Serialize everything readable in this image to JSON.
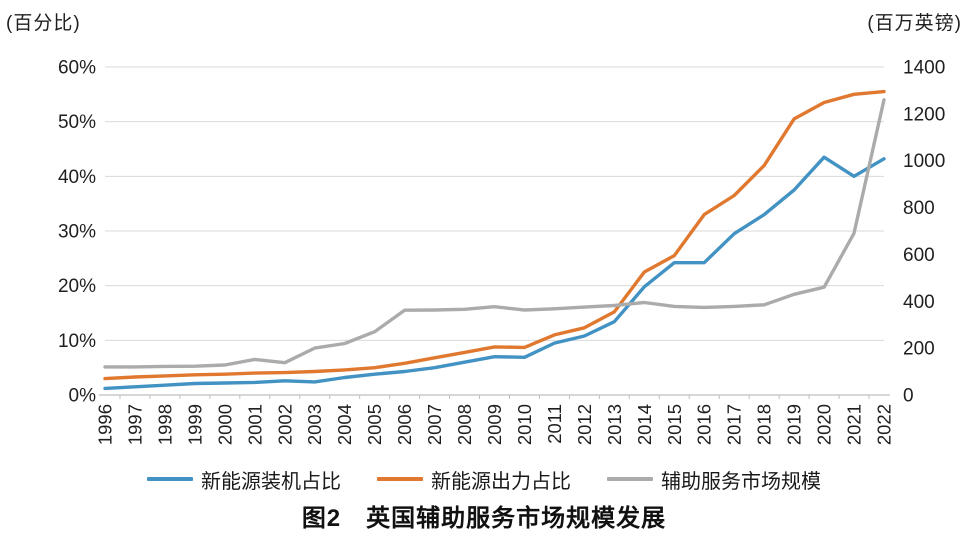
{
  "figure": {
    "left_axis_unit": "(百分比)",
    "right_axis_unit": "(百万英镑)",
    "caption": "图2　英国辅助服务市场规模发展"
  },
  "chart_data": {
    "type": "line",
    "title": "图2 英国辅助服务市场规模发展",
    "x": [
      1996,
      1997,
      1998,
      1999,
      2000,
      2001,
      2002,
      2003,
      2004,
      2005,
      2006,
      2007,
      2008,
      2009,
      2010,
      2011,
      2012,
      2013,
      2014,
      2015,
      2016,
      2017,
      2018,
      2019,
      2020,
      2021,
      2022
    ],
    "series": [
      {
        "name": "新能源装机占比",
        "axis": "left",
        "color": "#4292C3",
        "values": [
          1.2,
          1.5,
          1.8,
          2.1,
          2.2,
          2.3,
          2.6,
          2.4,
          3.2,
          3.8,
          4.3,
          5.0,
          6.0,
          7.0,
          6.9,
          9.5,
          10.8,
          13.4,
          19.8,
          24.2,
          24.2,
          29.5,
          33.0,
          37.5,
          43.5,
          40.0,
          43.2
        ]
      },
      {
        "name": "新能源出力占比",
        "axis": "left",
        "color": "#E0792F",
        "values": [
          3.0,
          3.3,
          3.5,
          3.7,
          3.8,
          4.0,
          4.1,
          4.3,
          4.6,
          5.0,
          5.8,
          6.8,
          7.8,
          8.8,
          8.7,
          11.0,
          12.3,
          15.2,
          22.5,
          25.5,
          33.0,
          36.5,
          42.0,
          50.5,
          53.5,
          55.0,
          55.5
        ]
      },
      {
        "name": "辅助服务市场规模",
        "axis": "right",
        "color": "#ABABAB",
        "values": [
          120,
          120,
          122,
          123,
          128,
          152,
          138,
          200,
          220,
          270,
          362,
          363,
          366,
          377,
          363,
          368,
          375,
          382,
          395,
          378,
          374,
          378,
          385,
          430,
          460,
          690,
          1260
        ]
      }
    ],
    "left_axis": {
      "unit": "(百分比)",
      "min": 0,
      "max": 60,
      "step": 10,
      "tick_suffix": "%"
    },
    "right_axis": {
      "unit": "(百万英镑)",
      "min": 0,
      "max": 1400,
      "step": 200
    },
    "grid": "horizontal-left-axis",
    "legend_position": "bottom",
    "colors": {
      "gridline": "#D9D9D9",
      "axis_line": "#BFBFBF",
      "tick_text": "#1f1f1f"
    }
  }
}
